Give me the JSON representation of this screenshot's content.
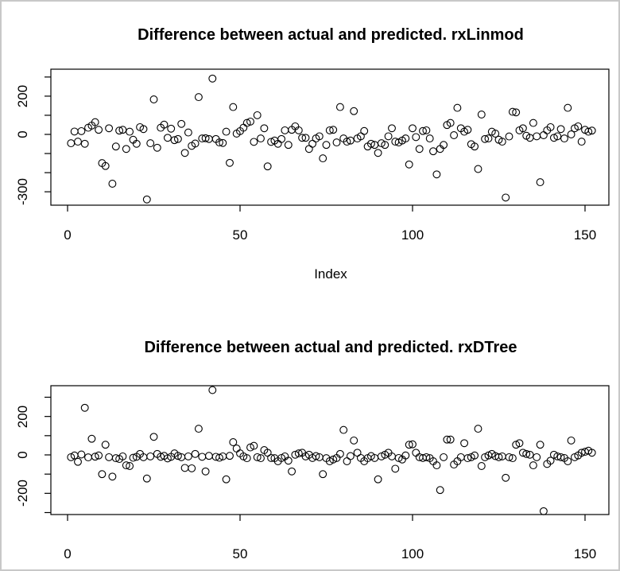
{
  "accent_colors": {
    "plot_stroke": "#000000",
    "frame_border": "#c8c8c8",
    "background": "#ffffff"
  },
  "chart_data": [
    {
      "type": "scatter",
      "title": "Difference between actual and predicted. rxLinmod",
      "xlabel": "Index",
      "ylabel": "",
      "marker": "open-circle",
      "grid": false,
      "xlim": [
        -5,
        158
      ],
      "ylim": [
        -375,
        340
      ],
      "x_ticks": [
        0,
        50,
        100,
        150
      ],
      "x_tick_labels": [
        "0",
        "50",
        "100",
        "150"
      ],
      "y_ticks": [
        300,
        200,
        100,
        0,
        -100,
        -200,
        -300
      ],
      "y_tick_labels": [
        {
          "v": 200,
          "t": "200"
        },
        {
          "v": 0,
          "t": "0"
        },
        {
          "v": -300,
          "t": "-300"
        }
      ],
      "x": "index 1..152",
      "values": [
        -46,
        15,
        -38,
        17,
        -49,
        35,
        46,
        64,
        24,
        -150,
        -165,
        32,
        -258,
        -63,
        20,
        24,
        -76,
        14,
        -28,
        -49,
        38,
        28,
        -340,
        -46,
        183,
        -70,
        35,
        51,
        -18,
        30,
        -30,
        -24,
        55,
        -97,
        10,
        -60,
        -48,
        195,
        -21,
        -20,
        -24,
        292,
        -24,
        -42,
        -45,
        14,
        -149,
        143,
        4,
        17,
        35,
        60,
        67,
        -39,
        100,
        -21,
        32,
        -167,
        -39,
        -32,
        -49,
        -24,
        21,
        -55,
        24,
        42,
        21,
        -18,
        -18,
        -76,
        -49,
        -21,
        -10,
        -125,
        -55,
        21,
        24,
        -42,
        143,
        -21,
        -38,
        -32,
        122,
        -21,
        -10,
        18,
        -63,
        -49,
        -55,
        -97,
        -46,
        -55,
        -10,
        32,
        -38,
        -42,
        -32,
        -21,
        -157,
        32,
        -14,
        -76,
        18,
        21,
        -21,
        -88,
        -209,
        -76,
        -55,
        49,
        60,
        -4,
        139,
        32,
        14,
        24,
        -51,
        -63,
        -181,
        104,
        -24,
        -21,
        14,
        4,
        -28,
        -38,
        -330,
        -11,
        118,
        115,
        21,
        32,
        -7,
        -18,
        60,
        -10,
        -250,
        -4,
        21,
        38,
        -18,
        -10,
        28,
        -21,
        139,
        0,
        32,
        42,
        -38,
        24,
        14,
        20
      ]
    },
    {
      "type": "scatter",
      "title": "Difference between actual and predicted. rxDTree",
      "xlabel": "",
      "ylabel": "",
      "marker": "open-circle",
      "grid": false,
      "xlim": [
        -5,
        158
      ],
      "ylim": [
        -310,
        360
      ],
      "x_ticks": [
        0,
        50,
        100,
        150
      ],
      "x_tick_labels": [
        "0",
        "50",
        "100",
        "150"
      ],
      "y_ticks": [
        300,
        200,
        100,
        0,
        -100,
        -200,
        -300
      ],
      "y_tick_labels": [
        {
          "v": 200,
          "t": "200"
        },
        {
          "v": 0,
          "t": "0"
        },
        {
          "v": -200,
          "t": "-200"
        }
      ],
      "x": "index 1..152",
      "values": [
        -12,
        -3,
        -36,
        2,
        245,
        -13,
        84,
        -9,
        -3,
        -100,
        53,
        -12,
        -113,
        -17,
        -21,
        -8,
        -54,
        -58,
        -15,
        -10,
        5,
        -12,
        -123,
        -8,
        94,
        5,
        -10,
        -5,
        -18,
        -10,
        8,
        -5,
        -12,
        -68,
        -8,
        -70,
        5,
        136,
        -10,
        -86,
        -5,
        337,
        -10,
        -15,
        -8,
        -127,
        -5,
        66,
        33,
        8,
        -8,
        -17,
        39,
        47,
        -12,
        -17,
        25,
        11,
        -16,
        -17,
        -33,
        -16,
        -8,
        -30,
        -86,
        1,
        8,
        11,
        -8,
        1,
        -16,
        -6,
        -12,
        -100,
        -17,
        -33,
        -24,
        -16,
        5,
        130,
        -33,
        -6,
        75,
        11,
        -16,
        -33,
        -17,
        -6,
        -16,
        -127,
        -8,
        1,
        11,
        -8,
        -72,
        -16,
        -24,
        -3,
        53,
        55,
        11,
        -12,
        -16,
        -12,
        -17,
        -33,
        -54,
        -183,
        -12,
        80,
        80,
        -50,
        -33,
        -12,
        61,
        -17,
        -12,
        -3,
        136,
        -58,
        -12,
        -3,
        5,
        -6,
        -12,
        -8,
        -119,
        -12,
        -17,
        53,
        61,
        11,
        5,
        1,
        -54,
        -12,
        53,
        -293,
        -47,
        -30,
        1,
        -8,
        -12,
        -16,
        -33,
        75,
        -12,
        -3,
        11,
        16,
        22,
        11
      ]
    }
  ]
}
